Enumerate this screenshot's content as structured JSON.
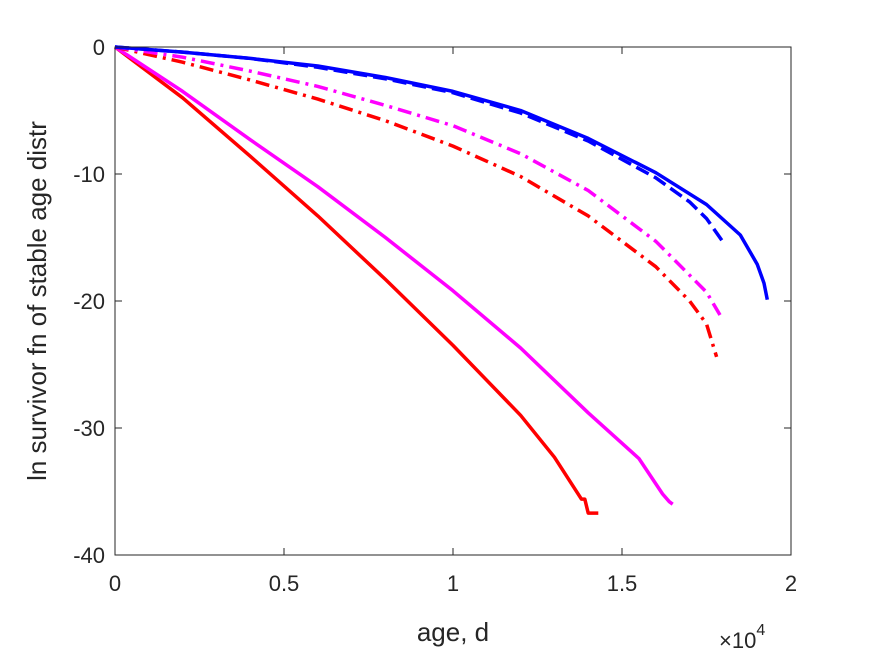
{
  "chart_data": {
    "type": "line",
    "xlabel": "age, d",
    "ylabel": "ln survivor fn of stable age distr",
    "x_multiplier_label": "×10",
    "x_multiplier_exponent": "4",
    "xlim": [
      0,
      20000
    ],
    "ylim": [
      -40,
      0
    ],
    "x_ticks": [
      0,
      5000,
      10000,
      15000,
      20000
    ],
    "x_tick_labels": [
      "0",
      "0.5",
      "1",
      "1.5",
      "2"
    ],
    "y_ticks": [
      0,
      -10,
      -20,
      -30,
      -40
    ],
    "y_tick_labels": [
      "0",
      "-10",
      "-20",
      "-30",
      "-40"
    ],
    "grid": false,
    "series": [
      {
        "color": "#ff0000",
        "style": "solid",
        "x": [
          0,
          2000,
          4000,
          6000,
          8000,
          10000,
          12000,
          13000,
          13800,
          13900,
          14000,
          14100,
          14300
        ],
        "y": [
          0,
          -4.0,
          -8.6,
          -13.3,
          -18.3,
          -23.5,
          -29.0,
          -32.3,
          -35.6,
          -35.6,
          -36.7,
          -36.7,
          -36.7
        ]
      },
      {
        "color": "#ff00ff",
        "style": "solid",
        "x": [
          0,
          2000,
          4000,
          6000,
          8000,
          10000,
          12000,
          14000,
          15500,
          16200,
          16400,
          16500
        ],
        "y": [
          0,
          -3.5,
          -7.3,
          -11.0,
          -15.0,
          -19.2,
          -23.7,
          -28.8,
          -32.4,
          -35.2,
          -35.8,
          -36.0
        ]
      },
      {
        "color": "#ff0000",
        "style": "dashdot",
        "x": [
          0,
          2000,
          4000,
          6000,
          8000,
          10000,
          12000,
          14000,
          16000,
          17000,
          17500,
          17800
        ],
        "y": [
          0,
          -1.2,
          -2.6,
          -4.1,
          -5.8,
          -7.8,
          -10.2,
          -13.3,
          -17.3,
          -20.0,
          -21.8,
          -24.4
        ]
      },
      {
        "color": "#ff00ff",
        "style": "dashdot",
        "x": [
          0,
          2000,
          4000,
          6000,
          8000,
          10000,
          12000,
          14000,
          16000,
          17500,
          17900
        ],
        "y": [
          0,
          -0.8,
          -1.9,
          -3.1,
          -4.6,
          -6.2,
          -8.4,
          -11.3,
          -15.3,
          -19.3,
          -21.1
        ]
      },
      {
        "color": "#0000ff",
        "style": "dashed",
        "x": [
          0,
          2000,
          4000,
          6000,
          8000,
          10000,
          12000,
          14000,
          16000,
          17000,
          17500,
          18000
        ],
        "y": [
          0,
          -0.4,
          -0.9,
          -1.6,
          -2.5,
          -3.6,
          -5.2,
          -7.4,
          -10.3,
          -12.2,
          -13.5,
          -15.4
        ]
      },
      {
        "color": "#0000ff",
        "style": "solid",
        "x": [
          0,
          2000,
          4000,
          6000,
          8000,
          10000,
          12000,
          14000,
          16000,
          17500,
          18500,
          19000,
          19200,
          19300
        ],
        "y": [
          0,
          -0.4,
          -0.9,
          -1.5,
          -2.4,
          -3.5,
          -5.0,
          -7.2,
          -9.9,
          -12.4,
          -14.8,
          -17.1,
          -18.6,
          -19.9
        ]
      }
    ]
  }
}
